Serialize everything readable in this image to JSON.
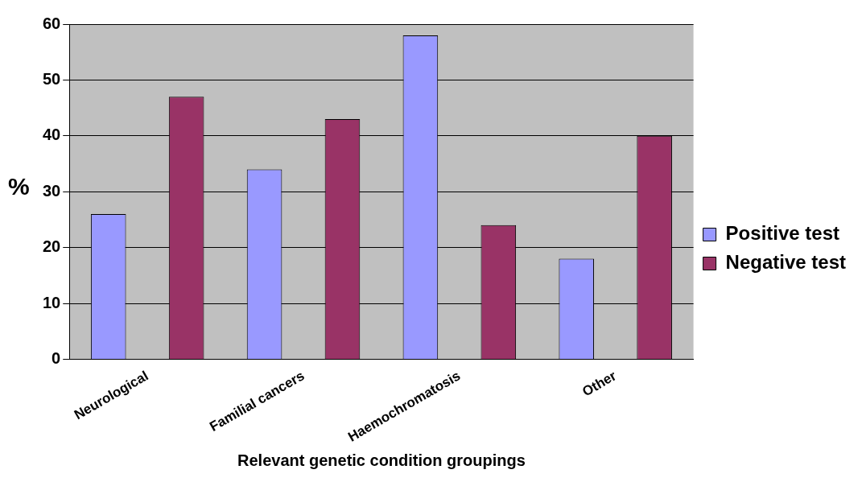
{
  "chart_data": {
    "type": "bar",
    "xlabel": "Relevant genetic condition groupings",
    "ylabel": "%",
    "categories": [
      "Neurological",
      "Familial cancers",
      "Haemochromatosis",
      "Other"
    ],
    "series": [
      {
        "name": "Positive test",
        "color": "#9999ff",
        "values": [
          26,
          34,
          58,
          18
        ]
      },
      {
        "name": "Negative test",
        "color": "#993366",
        "values": [
          47,
          43,
          24,
          40
        ]
      }
    ],
    "ylim": [
      0,
      60
    ],
    "yticks": [
      0,
      10,
      20,
      30,
      40,
      50,
      60
    ],
    "grid": "y",
    "legend": "right"
  }
}
